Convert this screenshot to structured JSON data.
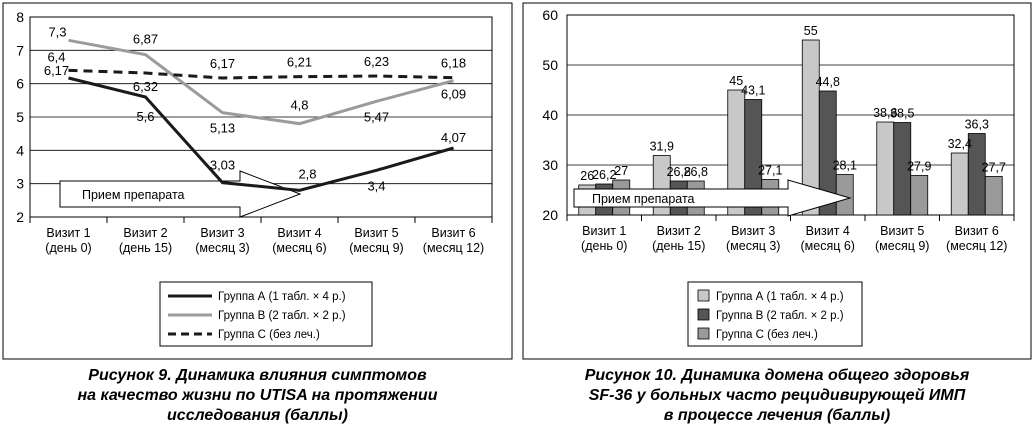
{
  "chart_data": [
    {
      "type": "line",
      "ylim": [
        2,
        8
      ],
      "yticks": [
        "2",
        "3",
        "4",
        "5",
        "6",
        "7",
        "8"
      ],
      "grid": true,
      "categories": [
        [
          "Визит 1",
          "(день 0)"
        ],
        [
          "Визит 2",
          "(день 15)"
        ],
        [
          "Визит 3",
          "(месяц 3)"
        ],
        [
          "Визит 4",
          "(месяц 6)"
        ],
        [
          "Визит 5",
          "(месяц 9)"
        ],
        [
          "Визит 6",
          "(месяц 12)"
        ]
      ],
      "series": [
        {
          "name": "Группа А (1 табл. × 4 р.)",
          "values": [
            6.17,
            5.6,
            3.03,
            2.8,
            3.4,
            4.07
          ],
          "labels": [
            "6,17",
            "5,6",
            "3,03",
            "2,8",
            "3,4",
            "4,07"
          ],
          "color": "#1a1a1a",
          "style": "solid"
        },
        {
          "name": "Группа В (2 табл. × 2 р.)",
          "values": [
            7.3,
            6.87,
            5.13,
            4.8,
            5.47,
            6.09
          ],
          "labels": [
            "7,3",
            "6,87",
            "5,13",
            "4,8",
            "5,47",
            "6,09"
          ],
          "color": "#9b9b9b",
          "style": "solid"
        },
        {
          "name": "Группа С (без леч.)",
          "values": [
            6.4,
            6.32,
            6.17,
            6.21,
            6.23,
            6.18
          ],
          "labels": [
            "6,4",
            "6,32",
            "6,17",
            "6,21",
            "6,23",
            "6,18"
          ],
          "color": "#1a1a1a",
          "style": "dashed"
        }
      ],
      "annotation": "Прием препарата",
      "legend_position": "bottom-right",
      "caption": [
        "Рисунок 9. Динамика влияния симптомов",
        "на качество жизни по UTISA на протяжении",
        "исследования (баллы)"
      ]
    },
    {
      "type": "bar",
      "ylim": [
        20,
        60
      ],
      "yticks": [
        "20",
        "30",
        "40",
        "50",
        "60"
      ],
      "grid": true,
      "categories": [
        [
          "Визит 1",
          "(день 0)"
        ],
        [
          "Визит 2",
          "(день 15)"
        ],
        [
          "Визит 3",
          "(месяц 3)"
        ],
        [
          "Визит 4",
          "(месяц 6)"
        ],
        [
          "Визит 5",
          "(месяц 9)"
        ],
        [
          "Визит 6",
          "(месяц 12)"
        ]
      ],
      "series": [
        {
          "name": "Группа А (1 табл. × 4 р.)",
          "values": [
            26,
            31.9,
            45,
            55,
            38.6,
            32.4
          ],
          "labels": [
            "26",
            "31,9",
            "45",
            "55",
            "38,6",
            "32,4"
          ],
          "color": "#c8c8c8"
        },
        {
          "name": "Группа В (2 табл. × 2 р.)",
          "values": [
            26.2,
            26.8,
            43.1,
            44.8,
            38.5,
            36.3
          ],
          "labels": [
            "26,2",
            "26,8",
            "43,1",
            "44,8",
            "38,5",
            "36,3"
          ],
          "color": "#555555"
        },
        {
          "name": "Группа С (без леч.)",
          "values": [
            27,
            26.8,
            27.1,
            28.1,
            27.9,
            27.7
          ],
          "labels": [
            "27",
            "26,8",
            "27,1",
            "28,1",
            "27,9",
            "27,7"
          ],
          "color": "#9a9a9a"
        }
      ],
      "annotation": "Прием препарата",
      "legend_position": "bottom-right",
      "caption": [
        "Рисунок 10. Динамика домена общего здоровья",
        "SF-36 у больных часто рецидивирующей ИМП",
        "в процессе лечения (баллы)"
      ]
    }
  ]
}
